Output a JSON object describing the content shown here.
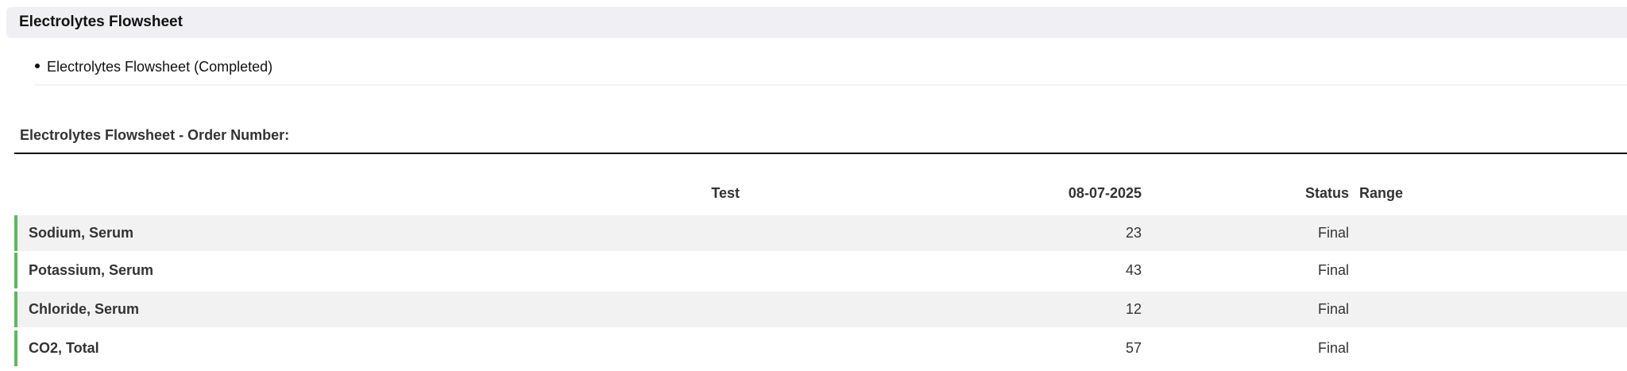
{
  "panel": {
    "title": "Electrolytes Flowsheet"
  },
  "orders": [
    {
      "label": "Electrolytes Flowsheet (Completed)"
    }
  ],
  "section": {
    "title": "Electrolytes Flowsheet - Order Number:"
  },
  "table": {
    "headers": {
      "test": "Test",
      "date": "08-07-2025",
      "status": "Status",
      "range": "Range"
    },
    "rows": [
      {
        "test": "Sodium, Serum",
        "value": "23",
        "status": "Final",
        "range": ""
      },
      {
        "test": "Potassium, Serum",
        "value": "43",
        "status": "Final",
        "range": ""
      },
      {
        "test": "Chloride, Serum",
        "value": "12",
        "status": "Final",
        "range": ""
      },
      {
        "test": "CO2, Total",
        "value": "57",
        "status": "Final",
        "range": ""
      }
    ]
  },
  "colors": {
    "row_accent": "#5cb85c",
    "row_stripe": "#f2f2f2",
    "panel_bg": "#f0f0f4"
  }
}
